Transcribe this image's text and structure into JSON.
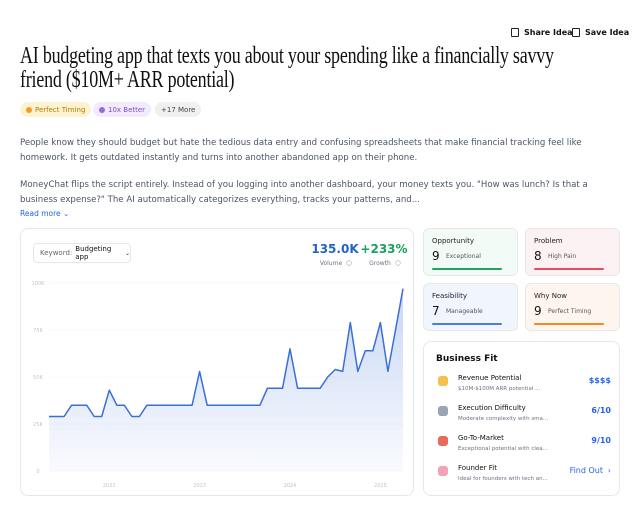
{
  "header": {
    "share": "Share Idea",
    "save": "Save Idea"
  },
  "title": "AI budgeting app that texts you about your spending like a financially savvy friend ($10M+ ARR potential)",
  "tags": [
    "Perfect Timing",
    "10x Better",
    "+17 More"
  ],
  "description": [
    "People know they should budget but hate the tedious data entry and confusing spreadsheets that make financial tracking feel like homework. It gets outdated instantly and turns into another abandoned app on their phone.",
    "MoneyChat flips the script entirely. Instead of you logging into another dashboard, your money texts you. \"How was lunch? Is that a business expense?\" The AI automatically categorizes everything, tracks your patterns, and..."
  ],
  "read_more": "Read more",
  "chart_data": {
    "type": "line",
    "keyword_label": "Keyword:",
    "keyword": "Budgeting app",
    "stats": [
      {
        "value": "135.0K",
        "label": "Volume",
        "color": "#2563c9"
      },
      {
        "value": "+233%",
        "label": "Growth",
        "color": "#16a35a"
      }
    ],
    "categories": [
      null,
      null,
      null,
      null,
      null,
      null,
      null,
      null,
      "2022",
      null,
      null,
      null,
      null,
      null,
      null,
      null,
      null,
      null,
      null,
      null,
      "2023",
      null,
      null,
      null,
      null,
      null,
      null,
      null,
      null,
      null,
      null,
      null,
      "2024",
      null,
      null,
      null,
      null,
      null,
      null,
      null,
      null,
      null,
      null,
      null,
      "2025",
      null,
      null,
      null
    ],
    "values": [
      29000,
      29000,
      29000,
      35000,
      35000,
      35000,
      29000,
      29000,
      43000,
      35000,
      35000,
      29000,
      29000,
      35000,
      35000,
      35000,
      35000,
      35000,
      35000,
      35000,
      53000,
      35000,
      35000,
      35000,
      35000,
      35000,
      35000,
      35000,
      35000,
      44000,
      44000,
      44000,
      65000,
      44000,
      44000,
      44000,
      44000,
      50000,
      54000,
      53000,
      79000,
      53000,
      64000,
      64000,
      79000,
      53000,
      75000,
      97000
    ],
    "color": "#3b6fd8",
    "ylim": [
      0,
      100000
    ],
    "yticks": [
      {
        "value": 0,
        "label": "0"
      },
      {
        "value": 25000,
        "label": "25K"
      },
      {
        "value": 50000,
        "label": "50K"
      },
      {
        "value": 75000,
        "label": "75K"
      },
      {
        "value": 100000,
        "label": "100K"
      }
    ],
    "grid": true
  },
  "metrics": [
    {
      "name": "Opportunity",
      "score": "9",
      "label": "Exceptional",
      "color": "#22a45d",
      "bg": "#f2fbf5"
    },
    {
      "name": "Problem",
      "score": "8",
      "label": "High Pain",
      "color": "#e0525a",
      "bg": "#fdf2f3"
    },
    {
      "name": "Feasibility",
      "score": "7",
      "label": "Manageable",
      "color": "#4a7fe0",
      "bg": "#f1f5fd"
    },
    {
      "name": "Why Now",
      "score": "9",
      "label": "Perfect Timing",
      "color": "#f08a24",
      "bg": "#fef6ee"
    }
  ],
  "business_fit": {
    "title": "Business Fit",
    "rows": [
      {
        "name": "Revenue Potential",
        "detail": "$10M-$100M ARR potential ...",
        "value": "$$$$"
      },
      {
        "name": "Execution Difficulty",
        "detail": "Moderate complexity with sma...",
        "value": "6/10"
      },
      {
        "name": "Go-To-Market",
        "detail": "Exceptional potential with clea...",
        "value": "9/10"
      },
      {
        "name": "Founder Fit",
        "detail": "Ideal for founders with tech an...",
        "value": "Find Out"
      }
    ]
  }
}
